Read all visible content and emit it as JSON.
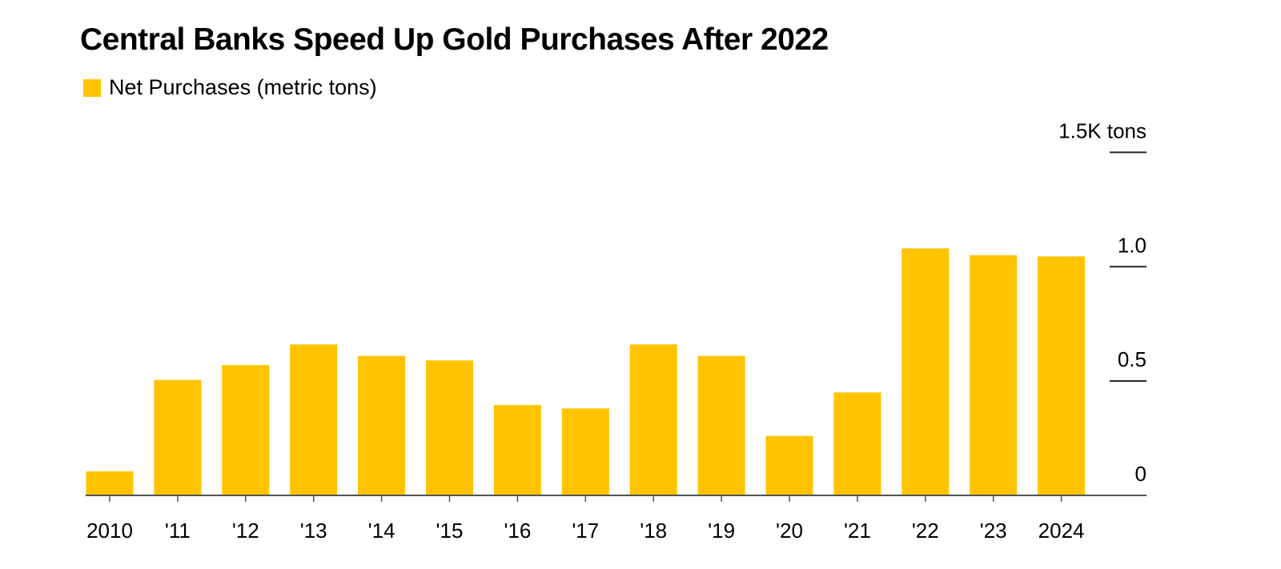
{
  "chart_data": {
    "type": "bar",
    "title": "Central Banks Speed Up Gold Purchases After 2022",
    "legend": [
      {
        "name": "Net Purchases (metric tons)",
        "color": "#FFC300"
      }
    ],
    "categories": [
      "2010",
      "'11",
      "'12",
      "'13",
      "'14",
      "'15",
      "'16",
      "'17",
      "'18",
      "'19",
      "'20",
      "'21",
      "'22",
      "'23",
      "2024"
    ],
    "series": [
      {
        "name": "Net Purchases (metric tons)",
        "color": "#FFC300",
        "values": [
          105,
          505,
          570,
          660,
          610,
          590,
          395,
          380,
          660,
          610,
          260,
          450,
          1080,
          1050,
          1045
        ]
      }
    ],
    "ylim": [
      0,
      1500
    ],
    "yticks": [
      {
        "value": 0,
        "label": "0"
      },
      {
        "value": 500,
        "label": "0.5"
      },
      {
        "value": 1000,
        "label": "1.0"
      },
      {
        "value": 1500,
        "label": "1.5K tons"
      }
    ],
    "xlabel": "",
    "ylabel": "",
    "y_axis_side": "right",
    "grid": false,
    "legend_position": "top-left"
  }
}
